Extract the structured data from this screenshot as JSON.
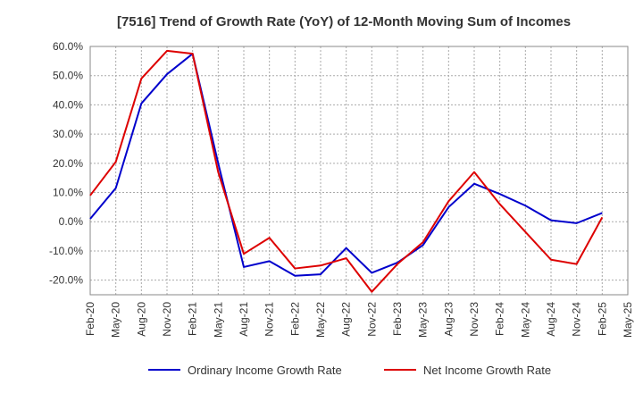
{
  "chart_data": {
    "type": "line",
    "title": "[7516]  Trend of Growth Rate (YoY) of 12-Month Moving Sum of Incomes",
    "xlabel": "",
    "ylabel": "",
    "x": [
      "Feb-20",
      "May-20",
      "Aug-20",
      "Nov-20",
      "Feb-21",
      "May-21",
      "Aug-21",
      "Nov-21",
      "Feb-22",
      "May-22",
      "Aug-22",
      "Nov-22",
      "Feb-23",
      "May-23",
      "Aug-23",
      "Nov-23",
      "Feb-24",
      "May-24",
      "Aug-24",
      "Nov-24",
      "Feb-25",
      "May-25"
    ],
    "ylim": [
      -25,
      60
    ],
    "yticks": [
      60,
      50,
      40,
      30,
      20,
      10,
      0,
      -10,
      -20
    ],
    "ytick_labels": [
      "60.0%",
      "50.0%",
      "40.0%",
      "30.0%",
      "20.0%",
      "10.0%",
      "0.0%",
      "-10.0%",
      "-20.0%"
    ],
    "grid": true,
    "legend_position": "bottom",
    "series": [
      {
        "name": "Ordinary Income Growth Rate",
        "color": "#0000cc",
        "values": [
          1.0,
          11.5,
          40.5,
          50.5,
          57.5,
          20.0,
          -15.5,
          -13.5,
          -18.5,
          -18.0,
          -9.0,
          -17.5,
          -14.0,
          -8.0,
          5.0,
          13.0,
          9.5,
          5.5,
          0.5,
          -0.5,
          3.0,
          null
        ]
      },
      {
        "name": "Net Income Growth Rate",
        "color": "#dd0000",
        "values": [
          9.0,
          20.5,
          49.0,
          58.5,
          57.5,
          17.0,
          -11.0,
          -5.5,
          -16.0,
          -15.0,
          -12.5,
          -24.0,
          -14.5,
          -7.0,
          7.0,
          17.0,
          6.0,
          -3.5,
          -13.0,
          -14.5,
          1.5,
          null
        ]
      }
    ]
  }
}
